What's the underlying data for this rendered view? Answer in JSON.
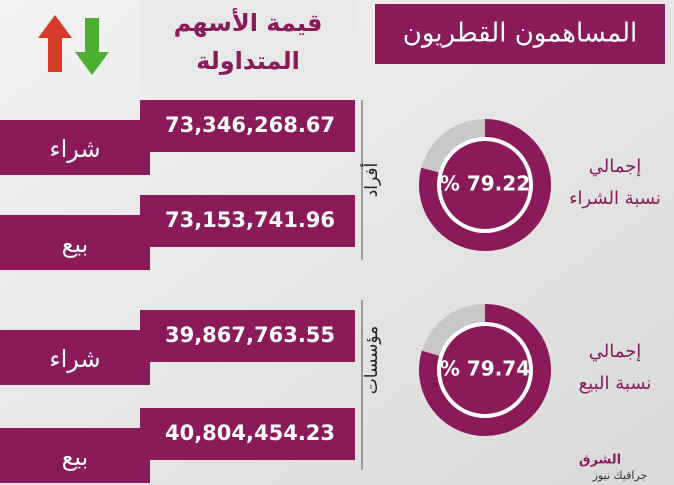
{
  "header": {
    "title": "المساهمون القطريون",
    "value_title": [
      "قيمة الأسهم",
      "المتداولة"
    ]
  },
  "groups": [
    {
      "name": "أفراد",
      "rows": [
        {
          "label": "شراء",
          "value": "73,346,268.67"
        },
        {
          "label": "بيع",
          "value": "73,153,741.96"
        }
      ]
    },
    {
      "name": "مؤسسات",
      "rows": [
        {
          "label": "شراء",
          "value": "39,867,763.55"
        },
        {
          "label": "بيع",
          "value": "40,804,454.23"
        }
      ]
    }
  ],
  "totals": [
    {
      "label": [
        "إجمالي",
        "نسبة الشراء"
      ],
      "percent": {
        "value": 79.22,
        "label": "% 79.22"
      }
    },
    {
      "label": [
        "إجمالي",
        "نسبة البيع"
      ],
      "percent": {
        "value": 79.74,
        "label": "% 79.74"
      }
    }
  ],
  "logo": {
    "name": "الشرق",
    "sub": "جرافيك نيوز"
  }
}
